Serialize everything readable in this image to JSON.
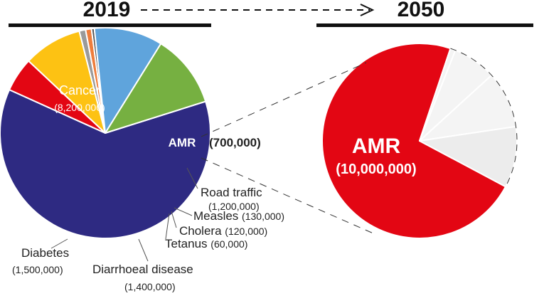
{
  "header": {
    "year_left": "2019",
    "year_right": "2050"
  },
  "colors": {
    "amr": "#e30613",
    "cancer": "#2e2a82",
    "diabetes": "#76b041",
    "diarrhoeal": "#5fa4dc",
    "road": "#fdc213",
    "measles": "#9a9a9a",
    "cholera": "#ee7d3c",
    "tetanus": "#555555",
    "other2050": "#f2f2f2"
  },
  "chart_data": [
    {
      "type": "pie",
      "title": "2019",
      "slices": [
        {
          "id": "cancer",
          "label": "Cancer",
          "value": 8200000,
          "display": "(8,200,000)",
          "color": "#2e2a82"
        },
        {
          "id": "amr",
          "label": "AMR",
          "value": 700000,
          "display": "(700,000)",
          "color": "#e30613"
        },
        {
          "id": "road",
          "label": "Road traffic",
          "value": 1200000,
          "display": "(1,200,000)",
          "color": "#fdc213"
        },
        {
          "id": "measles",
          "label": "Measles",
          "value": 130000,
          "display": "(130,000)",
          "color": "#9a9a9a"
        },
        {
          "id": "cholera",
          "label": "Cholera",
          "value": 120000,
          "display": "(120,000)",
          "color": "#ee7d3c"
        },
        {
          "id": "tetanus",
          "label": "Tetanus",
          "value": 60000,
          "display": "(60,000)",
          "color": "#555555"
        },
        {
          "id": "diarrhoeal",
          "label": "Diarrhoeal disease",
          "value": 1400000,
          "display": "(1,400,000)",
          "color": "#5fa4dc"
        },
        {
          "id": "diabetes",
          "label": "Diabetes",
          "value": 1500000,
          "display": "(1,500,000)",
          "color": "#76b041"
        }
      ]
    },
    {
      "type": "pie",
      "title": "2050",
      "slices": [
        {
          "id": "amr",
          "label": "AMR",
          "value": 10000000,
          "display": "(10,000,000)",
          "color": "#e30613"
        },
        {
          "id": "o1",
          "label": "",
          "value": 120000,
          "color": "#f4f4f4"
        },
        {
          "id": "o2",
          "label": "",
          "value": 1000000,
          "color": "#f4f4f4"
        },
        {
          "id": "o3",
          "label": "",
          "value": 1300000,
          "color": "#f4f4f4"
        },
        {
          "id": "o4",
          "label": "",
          "value": 1400000,
          "color": "#ececec"
        }
      ]
    }
  ]
}
